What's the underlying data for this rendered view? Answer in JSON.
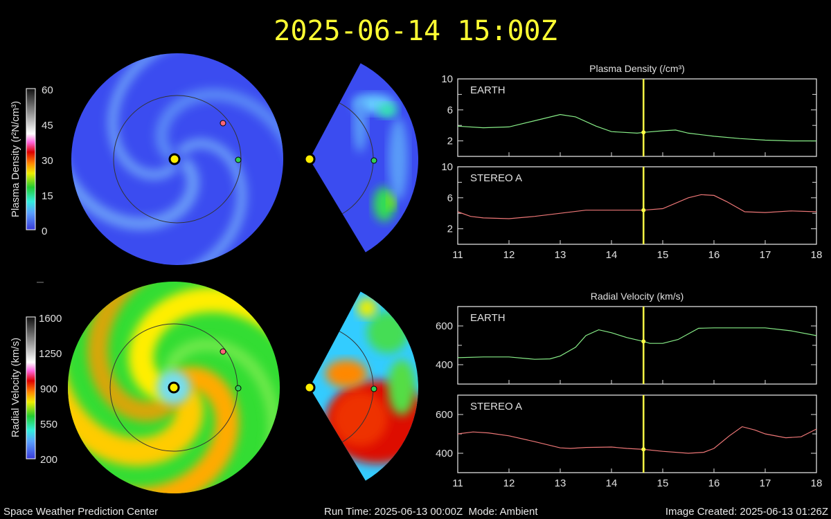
{
  "header": {
    "title": "2025-06-14 15:00Z"
  },
  "footer": {
    "org": "Space Weather Prediction Center",
    "run": "Run Time: 2025-06-13 00:00Z  Mode: Ambient",
    "created": "Image Created: 2025-06-13 01:26Z"
  },
  "colorbars": {
    "density": {
      "label": "Plasma Density (r²N/cm³)",
      "ticks": [
        "60",
        "45",
        "30",
        "15",
        "0"
      ]
    },
    "velocity": {
      "label": "Radial Velocity (km/s)",
      "ticks": [
        "1600",
        "1250",
        "900",
        "550",
        "200"
      ]
    }
  },
  "colors": {
    "earth": "#88ee88",
    "stereo_a": "#ee7777",
    "time_marker": "#ffff44",
    "sun": "#ffee00"
  },
  "chart_data": [
    {
      "type": "line",
      "group_title": "Plasma Density (/cm³)",
      "panel_label": "EARTH",
      "ylim": [
        0,
        10
      ],
      "yticks": [
        "2",
        "6",
        "10"
      ],
      "xlim": [
        11,
        18
      ],
      "xticks": [
        "11",
        "12",
        "13",
        "14",
        "15",
        "16",
        "17",
        "18"
      ],
      "marker_x": 14.625,
      "x": [
        11,
        11.5,
        12,
        12.5,
        13,
        13.3,
        13.7,
        14,
        14.5,
        14.625,
        15,
        15.25,
        15.5,
        16,
        16.5,
        17,
        17.5,
        18
      ],
      "y": [
        3.9,
        3.7,
        3.8,
        4.6,
        5.4,
        5.1,
        3.9,
        3.2,
        3.0,
        3.1,
        3.3,
        3.4,
        3.0,
        2.6,
        2.3,
        2.1,
        2.0,
        2.0
      ]
    },
    {
      "type": "line",
      "panel_label": "STEREO A",
      "ylim": [
        0,
        10
      ],
      "yticks": [
        "2",
        "6",
        "10"
      ],
      "xlim": [
        11,
        18
      ],
      "xticks": [
        "11",
        "12",
        "13",
        "14",
        "15",
        "16",
        "17",
        "18"
      ],
      "marker_x": 14.625,
      "x": [
        11,
        11.25,
        11.5,
        12,
        12.5,
        13,
        13.5,
        14,
        14.625,
        15,
        15.5,
        15.75,
        16,
        16.25,
        16.6,
        17,
        17.5,
        18
      ],
      "y": [
        4.2,
        3.6,
        3.4,
        3.3,
        3.6,
        4.0,
        4.4,
        4.4,
        4.4,
        4.6,
        6.0,
        6.4,
        6.3,
        5.5,
        4.2,
        4.1,
        4.3,
        4.2
      ]
    },
    {
      "type": "line",
      "group_title": "Radial Velocity (km/s)",
      "panel_label": "EARTH",
      "ylim": [
        300,
        700
      ],
      "yticks": [
        "400",
        "600"
      ],
      "xlim": [
        11,
        18
      ],
      "xticks": [
        "11",
        "12",
        "13",
        "14",
        "15",
        "16",
        "17",
        "18"
      ],
      "marker_x": 14.625,
      "x": [
        11,
        11.5,
        12,
        12.5,
        12.8,
        13,
        13.3,
        13.5,
        13.75,
        14,
        14.3,
        14.625,
        14.75,
        15,
        15.3,
        15.7,
        16,
        17,
        17.5,
        18
      ],
      "y": [
        436,
        440,
        440,
        428,
        430,
        445,
        490,
        550,
        580,
        565,
        540,
        520,
        510,
        510,
        530,
        588,
        590,
        590,
        575,
        550
      ]
    },
    {
      "type": "line",
      "panel_label": "STEREO A",
      "ylim": [
        300,
        700
      ],
      "yticks": [
        "400",
        "600"
      ],
      "xlim": [
        11,
        18
      ],
      "xticks": [
        "11",
        "12",
        "13",
        "14",
        "15",
        "16",
        "17",
        "18"
      ],
      "marker_x": 14.625,
      "x": [
        11,
        11.3,
        11.6,
        12,
        12.5,
        13,
        13.2,
        13.5,
        14,
        14.3,
        14.625,
        15,
        15.5,
        15.8,
        16,
        16.3,
        16.55,
        16.8,
        17,
        17.4,
        17.7,
        18
      ],
      "y": [
        500,
        510,
        505,
        490,
        460,
        428,
        425,
        430,
        432,
        425,
        420,
        410,
        400,
        405,
        425,
        490,
        537,
        520,
        500,
        480,
        485,
        525
      ]
    }
  ]
}
